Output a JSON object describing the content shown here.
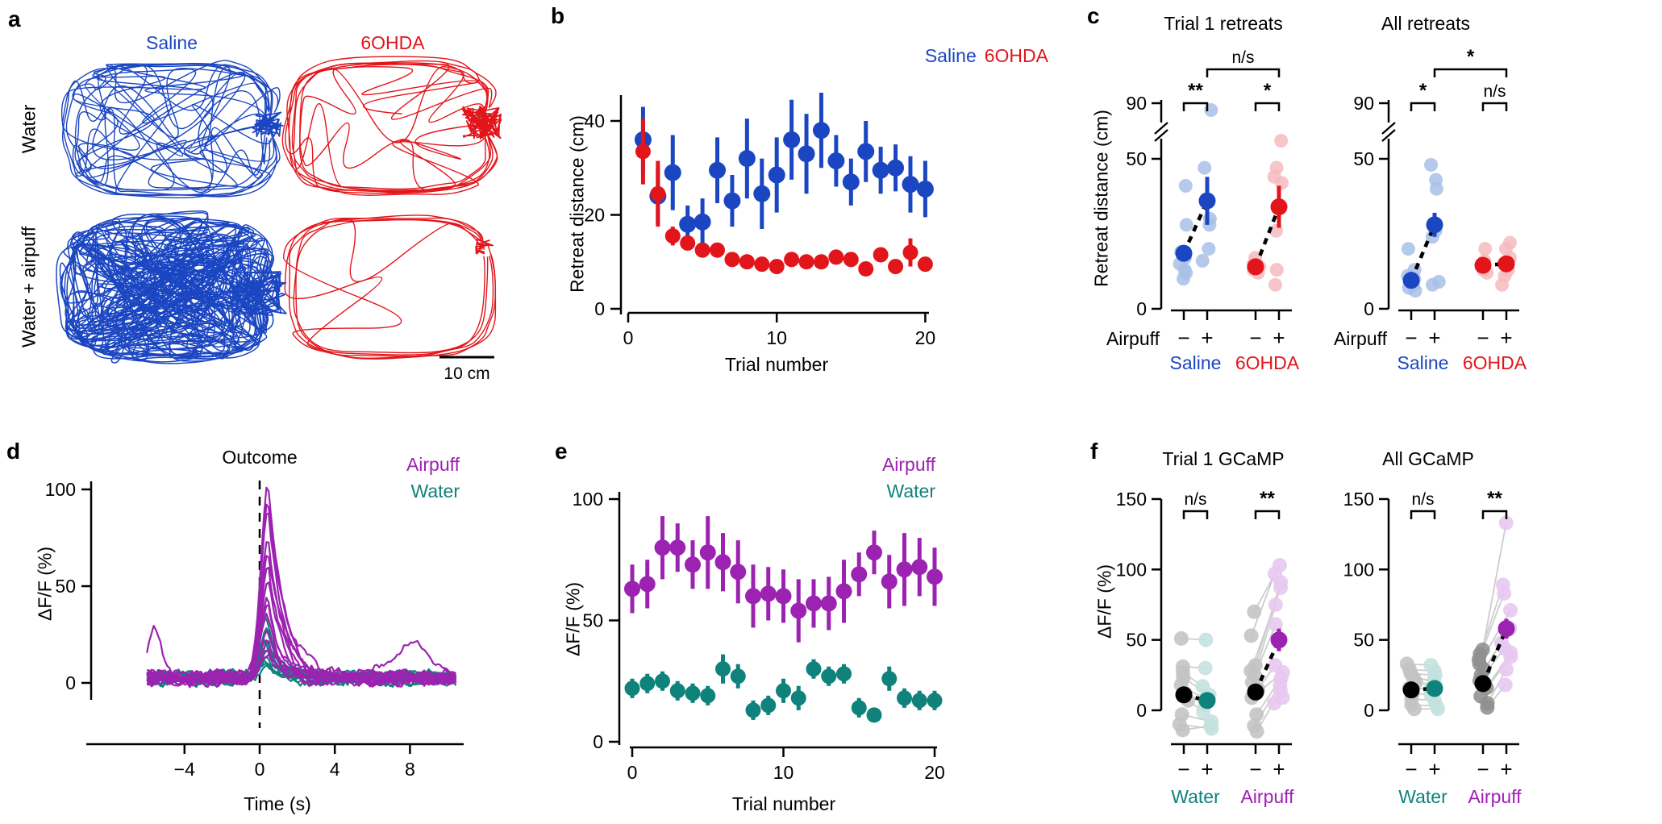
{
  "colors": {
    "blue": "#1B46C2",
    "light_blue": "#A8C0E8",
    "red": "#E2151B",
    "light_red": "#F6BABD",
    "purple": "#9C22B1",
    "light_purple": "#E7C7F0",
    "teal": "#0F827B",
    "light_teal": "#C3E1DE",
    "gray": "#C3C3C3",
    "dark_gray": "#8F8F8F",
    "line_gray": "#CDCDCD",
    "black": "#000000"
  },
  "panels": {
    "a": {
      "letter": "a",
      "col_labels": [
        "Saline",
        "6OHDA"
      ],
      "row_labels": [
        "Water",
        "Water + airpuff"
      ],
      "scale_label": "10 cm"
    },
    "b": {
      "letter": "b",
      "ylabel": "Retreat distance (cm)",
      "xlabel": "Trial number",
      "legend": [
        "Saline",
        "6OHDA"
      ]
    },
    "c": {
      "letter": "c",
      "titles": [
        "Trial 1 retreats",
        "All retreats"
      ],
      "ylabel": "Retreat distance (cm)"
    },
    "d": {
      "letter": "d",
      "ylabel": "ΔF/F (%)",
      "xlabel": "Time (s)",
      "annotation": "Outcome",
      "legend": [
        "Airpuff",
        "Water"
      ]
    },
    "e": {
      "letter": "e",
      "ylabel": "ΔF/F (%)",
      "xlabel": "Trial number",
      "legend": [
        "Airpuff",
        "Water"
      ]
    },
    "f": {
      "letter": "f",
      "titles": [
        "Trial 1 GCaMP",
        "All GCaMP"
      ],
      "ylabel": "ΔF/F (%)"
    }
  },
  "chart_data": [
    {
      "id": "a",
      "type": "trajectories",
      "title": "Open-field trajectories",
      "columns": [
        "Saline",
        "6OHDA"
      ],
      "rows": [
        "Water",
        "Water + airpuff"
      ],
      "conditions": [
        {
          "group": "Saline",
          "condition": "Water",
          "color": "blue",
          "coverage": "perimeter loops with right-side nest cluster"
        },
        {
          "group": "6OHDA",
          "condition": "Water",
          "color": "red",
          "coverage": "sparse perimeter loops with right-side nest cluster"
        },
        {
          "group": "Saline",
          "condition": "Water + airpuff",
          "color": "blue",
          "coverage": "dense whole-arena exploration"
        },
        {
          "group": "6OHDA",
          "condition": "Water + airpuff",
          "color": "red",
          "coverage": "very sparse perimeter loops"
        }
      ],
      "scale_bar": "10 cm"
    },
    {
      "id": "b",
      "type": "scatter",
      "xlabel": "Trial number",
      "ylabel": "Retreat distance (cm)",
      "xticks": [
        "0",
        "10",
        "20"
      ],
      "yticks": [
        "0",
        "20",
        "40"
      ],
      "xlim": [
        0,
        20
      ],
      "ylim": [
        0,
        48
      ],
      "legend": [
        "Saline",
        "6OHDA"
      ],
      "legend_position": "top-right",
      "x": [
        1,
        2,
        3,
        4,
        5,
        6,
        7,
        8,
        9,
        10,
        11,
        12,
        13,
        14,
        15,
        16,
        17,
        18,
        19,
        20
      ],
      "series": [
        {
          "name": "Saline",
          "color": "blue",
          "values": [
            36,
            24,
            29,
            18,
            18.5,
            29.5,
            23,
            32,
            24.5,
            28.5,
            36,
            33,
            38,
            31.5,
            27,
            33.5,
            29.5,
            30,
            26.5,
            25.5
          ],
          "errors": [
            7,
            6,
            8,
            4,
            5,
            7,
            5.5,
            8.5,
            7.5,
            8,
            8.5,
            8.5,
            8,
            5.5,
            5,
            6.5,
            5,
            5,
            6,
            6
          ]
        },
        {
          "name": "6OHDA",
          "color": "red",
          "values": [
            33.5,
            24.5,
            15.5,
            14,
            12.5,
            12.5,
            10.5,
            10,
            9.5,
            9,
            10.5,
            10,
            10,
            11,
            10.5,
            8.5,
            11.5,
            9,
            12,
            9.5
          ],
          "errors": [
            7,
            7,
            2,
            1.5,
            1.5,
            1.5,
            1.5,
            1,
            1,
            1,
            1.5,
            1,
            1,
            1.5,
            1,
            1,
            1.5,
            1,
            3,
            1.5
          ]
        }
      ]
    },
    {
      "id": "c",
      "type": "dot-plot-broken-axis",
      "ylabel": "Retreat distance (cm)",
      "yticks": [
        "0",
        "50",
        "90"
      ],
      "axis_break": [
        52,
        88
      ],
      "row_label": "Airpuff",
      "sign_labels": [
        "−",
        "+"
      ],
      "subpanels": [
        {
          "title": "Trial 1 retreats",
          "groups": [
            {
              "group": "Saline",
              "airpuff": "−",
              "dot_color": "light_blue",
              "mean_color": "blue",
              "scatter": [
                41,
                28,
                19,
                17,
                15,
                13,
                12,
                10
              ],
              "mean": 18.5,
              "sem": 2.5
            },
            {
              "group": "Saline",
              "airpuff": "+",
              "dot_color": "light_blue",
              "mean_color": "blue",
              "scatter": [
                85,
                47,
                30,
                28,
                20,
                16
              ],
              "mean": 36,
              "sem": 8
            },
            {
              "group": "6OHDA",
              "airpuff": "−",
              "dot_color": "light_red",
              "mean_color": "red",
              "scatter": [
                17,
                15,
                14,
                13,
                12
              ],
              "mean": 14,
              "sem": 1.5
            },
            {
              "group": "6OHDA",
              "airpuff": "+",
              "dot_color": "light_red",
              "mean_color": "red",
              "scatter": [
                63,
                47,
                44,
                42,
                26,
                13,
                8
              ],
              "mean": 34,
              "sem": 7
            }
          ],
          "group_labels": [
            {
              "text": "Saline",
              "color": "blue"
            },
            {
              "text": "6OHDA",
              "color": "red"
            }
          ],
          "sig": {
            "pair1": "**",
            "pair2": "*",
            "across": "n/s"
          }
        },
        {
          "title": "All retreats",
          "groups": [
            {
              "group": "Saline",
              "airpuff": "−",
              "dot_color": "light_blue",
              "mean_color": "blue",
              "scatter": [
                20,
                13,
                11,
                10,
                9,
                8,
                7,
                6
              ],
              "mean": 9.5,
              "sem": 1.5
            },
            {
              "group": "Saline",
              "airpuff": "+",
              "dot_color": "light_blue",
              "mean_color": "blue",
              "scatter": [
                48,
                43,
                40,
                26,
                24,
                9,
                8
              ],
              "mean": 28,
              "sem": 4
            },
            {
              "group": "6OHDA",
              "airpuff": "−",
              "dot_color": "light_red",
              "mean_color": "red",
              "scatter": [
                20,
                16,
                14,
                13,
                12
              ],
              "mean": 14.5,
              "sem": 1.5
            },
            {
              "group": "6OHDA",
              "airpuff": "+",
              "dot_color": "light_red",
              "mean_color": "red",
              "scatter": [
                22,
                20,
                17,
                15,
                13,
                11,
                8
              ],
              "mean": 15,
              "sem": 2
            }
          ],
          "group_labels": [
            {
              "text": "Saline",
              "color": "blue"
            },
            {
              "text": "6OHDA",
              "color": "red"
            }
          ],
          "sig": {
            "pair1": "*",
            "pair2": "n/s",
            "across": "*"
          }
        }
      ]
    },
    {
      "id": "d",
      "type": "line",
      "xlabel": "Time (s)",
      "ylabel": "ΔF/F (%)",
      "xticks": [
        "−4",
        "0",
        "4",
        "8"
      ],
      "xtick_values": [
        -4,
        0,
        4,
        8
      ],
      "yticks": [
        "0",
        "50",
        "100"
      ],
      "ytick_values": [
        0,
        50,
        100
      ],
      "xlim": [
        -6,
        10.5
      ],
      "ylim": [
        -15,
        103
      ],
      "annotation": "Outcome",
      "event_time": 0,
      "legend": [
        "Airpuff",
        "Water"
      ],
      "series": [
        {
          "name": "Airpuff",
          "color": "purple",
          "peak_amplitudes": [
            100,
            92,
            84,
            76,
            66,
            58,
            50,
            43,
            36,
            30,
            25,
            20,
            16,
            12
          ],
          "baseline": 2.5,
          "peak_time": 0.45
        },
        {
          "name": "Water",
          "color": "teal",
          "peak_amplitudes": [
            30,
            27,
            24,
            21,
            19,
            17,
            15,
            13,
            11,
            9,
            8,
            7
          ],
          "baseline": 2.5,
          "peak_time": 0.4
        }
      ]
    },
    {
      "id": "e",
      "type": "scatter",
      "xlabel": "Trial number",
      "ylabel": "ΔF/F (%)",
      "xticks": [
        "0",
        "10",
        "20"
      ],
      "yticks": [
        "0",
        "50",
        "100"
      ],
      "xlim": [
        0,
        20
      ],
      "ylim": [
        0,
        100
      ],
      "legend": [
        "Airpuff",
        "Water"
      ],
      "legend_position": "top-right",
      "x": [
        0,
        1,
        2,
        3,
        4,
        5,
        6,
        7,
        8,
        9,
        10,
        11,
        12,
        13,
        14,
        15,
        16,
        17,
        18,
        19,
        20
      ],
      "series": [
        {
          "name": "Airpuff",
          "color": "purple",
          "values": [
            63,
            65,
            80,
            80,
            73,
            78,
            74,
            70,
            60,
            61,
            60,
            54,
            57,
            57,
            62,
            69,
            78,
            66,
            71,
            72,
            68
          ],
          "errors": [
            10,
            10,
            13,
            10,
            10,
            15,
            12,
            13,
            13,
            11,
            11,
            13,
            10,
            11,
            13,
            9,
            9,
            11,
            15,
            12,
            12
          ]
        },
        {
          "name": "Water",
          "color": "teal",
          "values": [
            22,
            24,
            25,
            21,
            20,
            19,
            30,
            27,
            13,
            15,
            21,
            18,
            30,
            27,
            28,
            14,
            11,
            26,
            18,
            17,
            17
          ],
          "errors": [
            4,
            4,
            4,
            4,
            4,
            4,
            6,
            5,
            4,
            4,
            5,
            5,
            4,
            4,
            4,
            4,
            3,
            5,
            4,
            4,
            4
          ]
        }
      ]
    },
    {
      "id": "f",
      "type": "paired-dot-plot",
      "ylabel": "ΔF/F (%)",
      "yticks": [
        "0",
        "50",
        "100",
        "150"
      ],
      "sign_labels": [
        "−",
        "+"
      ],
      "subpanels": [
        {
          "title": "Trial 1 GCaMP",
          "groups": [
            {
              "group": "Water",
              "airpuff": "−",
              "dot_color": "gray",
              "mean_color": "black",
              "scatter": [
                51,
                31,
                27,
                23,
                18,
                12,
                7,
                -3,
                -10,
                -14
              ],
              "mean": 11,
              "sem": 4
            },
            {
              "group": "Water",
              "airpuff": "+",
              "dot_color": "light_teal",
              "mean_color": "teal",
              "scatter": [
                50,
                30,
                17,
                11,
                8,
                4,
                -1,
                -8,
                -13,
                -11
              ],
              "mean": 7,
              "sem": 4
            },
            {
              "group": "Airpuff",
              "airpuff": "−",
              "dot_color": "gray",
              "mean_color": "black",
              "scatter": [
                70,
                53,
                32,
                28,
                25,
                20,
                15,
                9,
                -3,
                -11,
                -15
              ],
              "mean": 13,
              "sem": 5
            },
            {
              "group": "Airpuff",
              "airpuff": "+",
              "dot_color": "light_purple",
              "mean_color": "purple",
              "scatter": [
                103,
                97,
                91,
                87,
                75,
                61,
                32,
                27,
                23,
                18,
                14,
                9,
                5
              ],
              "mean": 50,
              "sem": 8
            }
          ],
          "group_labels": [
            {
              "text": "Water",
              "color": "teal"
            },
            {
              "text": "Airpuff",
              "color": "purple"
            }
          ],
          "sig": {
            "pair1": "n/s",
            "pair2": "**"
          }
        },
        {
          "title": "All GCaMP",
          "groups": [
            {
              "group": "Water",
              "airpuff": "−",
              "dot_color": "gray",
              "mean_color": "black",
              "scatter": [
                33,
                29,
                26,
                23,
                20,
                16,
                12,
                8,
                4,
                1
              ],
              "mean": 14.5,
              "sem": 3
            },
            {
              "group": "Water",
              "airpuff": "+",
              "dot_color": "light_teal",
              "mean_color": "teal",
              "scatter": [
                32,
                28,
                25,
                21,
                18,
                15,
                11,
                7,
                3,
                1
              ],
              "mean": 15.5,
              "sem": 3
            },
            {
              "group": "Airpuff",
              "airpuff": "−",
              "dot_color": "dark_gray",
              "mean_color": "black",
              "scatter": [
                43,
                40,
                36,
                33,
                29,
                25,
                21,
                16,
                10,
                5,
                2
              ],
              "mean": 19,
              "sem": 4
            },
            {
              "group": "Airpuff",
              "airpuff": "+",
              "dot_color": "light_purple",
              "mean_color": "purple",
              "scatter": [
                133,
                89,
                83,
                71,
                58,
                48,
                44,
                41,
                38,
                29,
                18
              ],
              "mean": 58,
              "sem": 7
            }
          ],
          "group_labels": [
            {
              "text": "Water",
              "color": "teal"
            },
            {
              "text": "Airpuff",
              "color": "purple"
            }
          ],
          "sig": {
            "pair1": "n/s",
            "pair2": "**"
          }
        }
      ]
    }
  ]
}
